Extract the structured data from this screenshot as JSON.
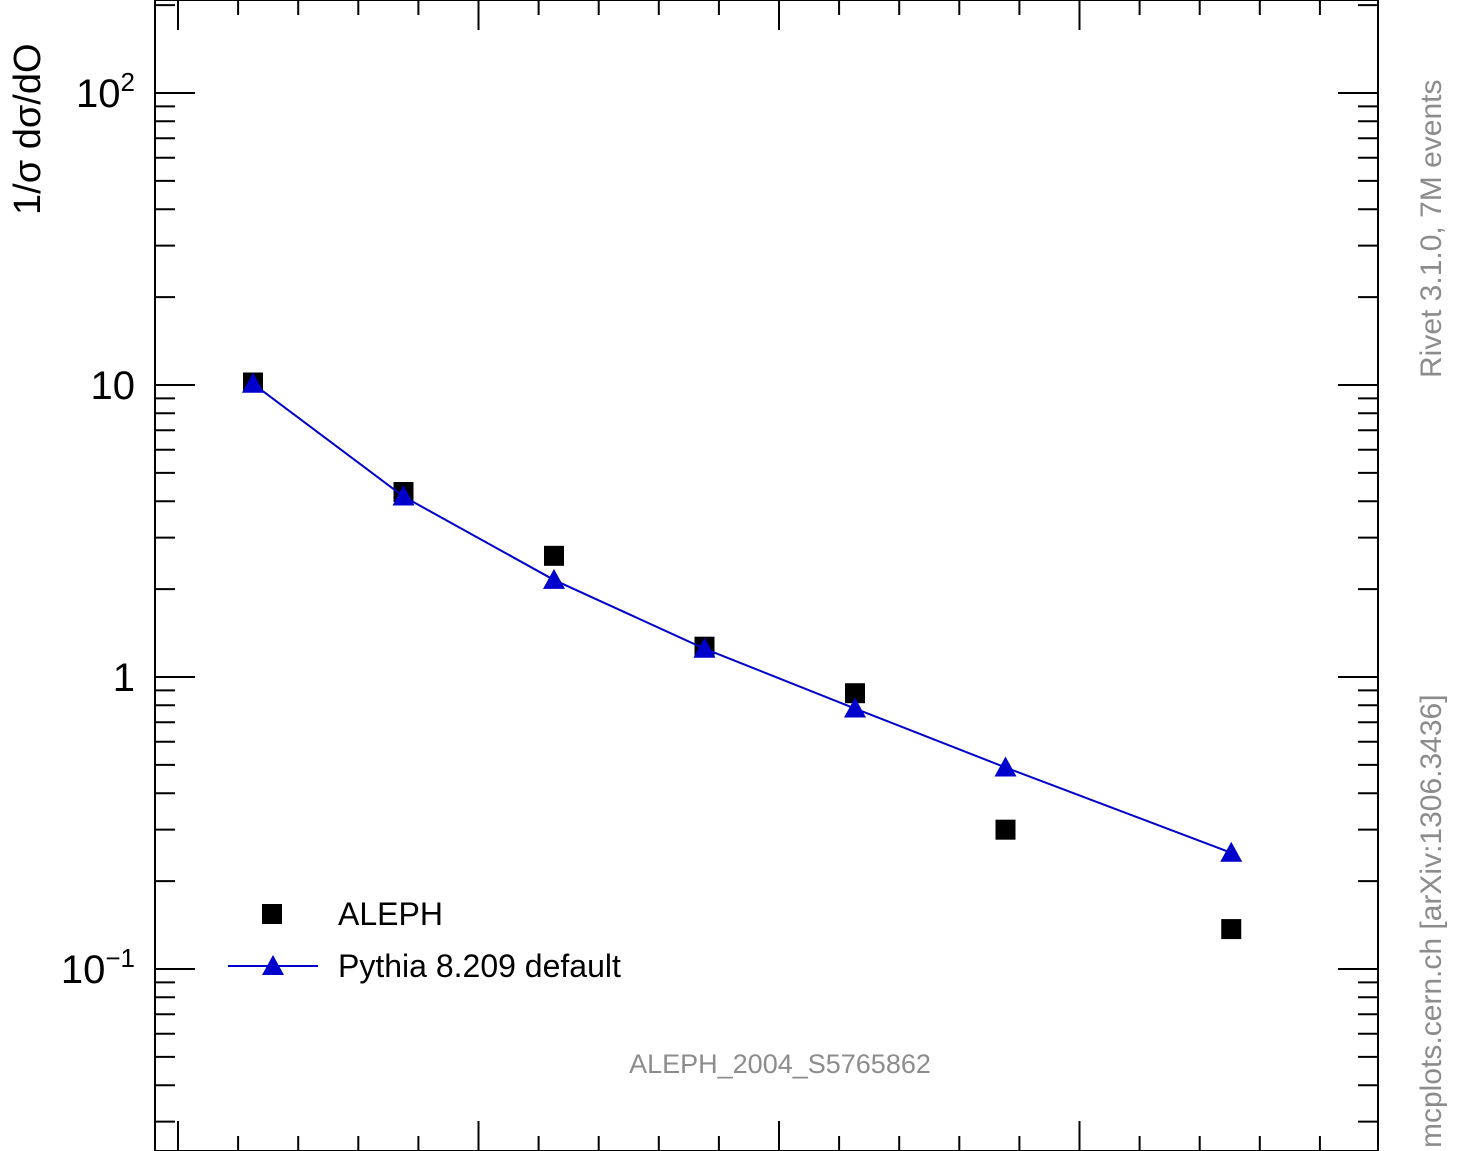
{
  "chart_data": {
    "type": "scatter",
    "ylabel": "1/σ dσ/dO",
    "yscale": "log",
    "ylim": [
      0.0296,
      200
    ],
    "grid": false,
    "legend_position": "bottom-left",
    "y_tick_labels": [
      {
        "value": 100,
        "base": "10",
        "exp": "2"
      },
      {
        "value": 10,
        "base": "10",
        "exp": ""
      },
      {
        "value": 1,
        "base": "1",
        "exp": ""
      },
      {
        "value": 0.1,
        "base": "10",
        "exp": "−1"
      }
    ],
    "series": [
      {
        "name": "ALEPH",
        "marker": "square",
        "color": "#000000",
        "line": false,
        "x": [
          1,
          2,
          3,
          4,
          5,
          6,
          7.5
        ],
        "values": [
          10.2,
          4.3,
          2.6,
          1.27,
          0.88,
          0.3,
          0.137
        ]
      },
      {
        "name": "Pythia 8.209 default",
        "marker": "triangle",
        "color": "#0000cc",
        "line": true,
        "x": [
          1,
          2,
          3,
          4,
          5,
          6,
          7.5
        ],
        "values": [
          10.1,
          4.15,
          2.15,
          1.25,
          0.78,
          0.49,
          0.25
        ]
      }
    ]
  },
  "side_text": {
    "right_top": "Rivet 3.1.0,  7M events",
    "right_bottom": "mcplots.cern.ch [arXiv:1306.3436]"
  },
  "watermark": "ALEPH_2004_S5765862"
}
